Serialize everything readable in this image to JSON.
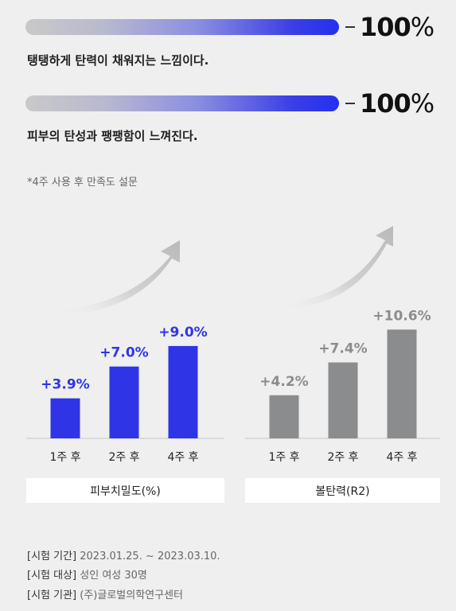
{
  "satisfaction": [
    {
      "text": "탱탱하게 탄력이 채워지는 느낌이다.",
      "percent_num": "100",
      "percent_sym": "%",
      "value": 100
    },
    {
      "text": "피부의 탄성과 팽팽함이 느껴진다.",
      "percent_num": "100",
      "percent_sym": "%",
      "value": 100
    }
  ],
  "note": "*4주 사용 후 만족도 설문",
  "chart_data": [
    {
      "type": "bar",
      "categories": [
        "1주 후",
        "2주 후",
        "4주 후"
      ],
      "values": [
        3.9,
        7.0,
        9.0
      ],
      "labels": [
        "+3.9%",
        "+7.0%",
        "+9.0%"
      ],
      "xlabel": "피부치밀도(%)",
      "color": "#2f35e6"
    },
    {
      "type": "bar",
      "categories": [
        "1주 후",
        "2주 후",
        "4주 후"
      ],
      "values": [
        4.2,
        7.4,
        10.6
      ],
      "labels": [
        "+4.2%",
        "+7.4%",
        "+10.6%"
      ],
      "xlabel": "볼탄력(R2)",
      "color": "#8b8c8e"
    }
  ],
  "info": [
    {
      "key": "[시험 기간]",
      "value": "2023.01.25. ~ 2023.03.10."
    },
    {
      "key": "[시험 대상]",
      "value": "성인 여성 30명"
    },
    {
      "key": "[시험 기관]",
      "value": "(주)글로벌의학연구센터"
    }
  ]
}
